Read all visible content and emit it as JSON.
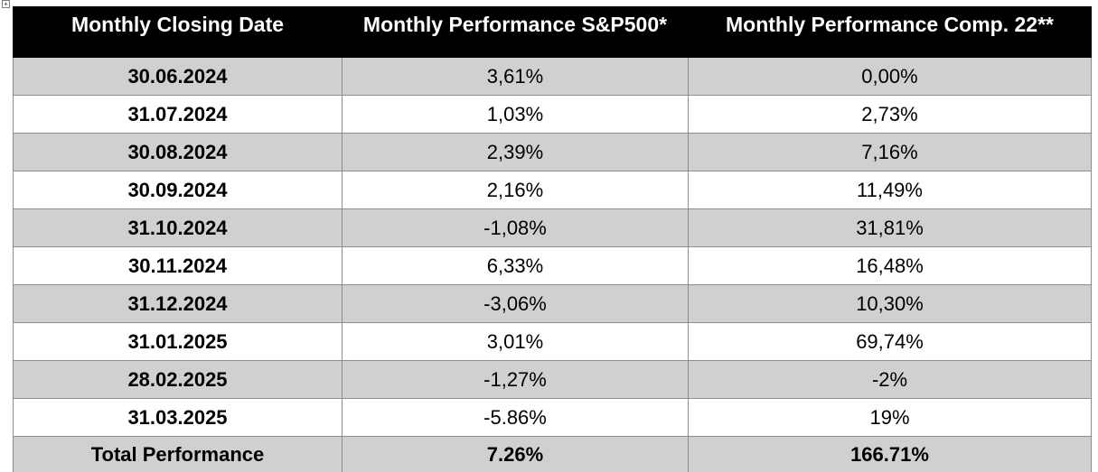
{
  "table": {
    "headers": [
      "Monthly Closing Date",
      "Monthly Performance S&P500*",
      "Monthly Performance Comp. 22**"
    ],
    "rows": [
      {
        "date": "30.06.2024",
        "sp500": "3,61%",
        "comp22": "0,00%"
      },
      {
        "date": "31.07.2024",
        "sp500": "1,03%",
        "comp22": "2,73%"
      },
      {
        "date": "30.08.2024",
        "sp500": "2,39%",
        "comp22": "7,16%"
      },
      {
        "date": "30.09.2024",
        "sp500": "2,16%",
        "comp22": "11,49%"
      },
      {
        "date": "31.10.2024",
        "sp500": "-1,08%",
        "comp22": "31,81%"
      },
      {
        "date": "30.11.2024",
        "sp500": "6,33%",
        "comp22": "16,48%"
      },
      {
        "date": "31.12.2024",
        "sp500": "-3,06%",
        "comp22": "10,30%"
      },
      {
        "date": "31.01.2025",
        "sp500": "3,01%",
        "comp22": "69,74%"
      },
      {
        "date": "28.02.2025",
        "sp500": "-1,27%",
        "comp22": "-2%"
      },
      {
        "date": "31.03.2025",
        "sp500": "-5.86%",
        "comp22": "19%"
      }
    ],
    "total": {
      "label": "Total Performance",
      "sp500": "7.26%",
      "comp22": "166.71%"
    }
  },
  "colors": {
    "header_bg": "#000000",
    "header_text": "#ffffff",
    "stripe_gray": "#d0d0d0",
    "stripe_white": "#ffffff"
  }
}
